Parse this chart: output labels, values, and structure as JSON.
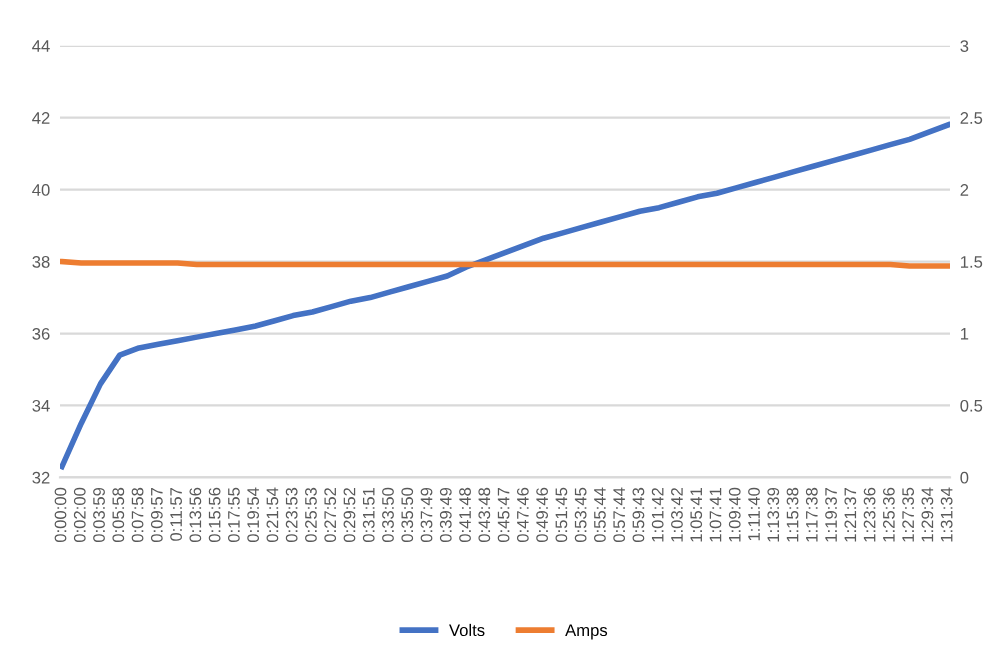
{
  "chart_data": {
    "type": "line",
    "categories": [
      "0:00:00",
      "0:02:00",
      "0:03:59",
      "0:05:58",
      "0:07:58",
      "0:09:57",
      "0:11:57",
      "0:13:56",
      "0:15:56",
      "0:17:55",
      "0:19:54",
      "0:21:54",
      "0:23:53",
      "0:25:53",
      "0:27:52",
      "0:29:52",
      "0:31:51",
      "0:33:50",
      "0:35:50",
      "0:37:49",
      "0:39:49",
      "0:41:48",
      "0:43:48",
      "0:45:47",
      "0:47:46",
      "0:49:46",
      "0:51:45",
      "0:53:45",
      "0:55:44",
      "0:57:44",
      "0:59:43",
      "1:01:42",
      "1:03:42",
      "1:05:41",
      "1:07:41",
      "1:09:40",
      "1:11:40",
      "1:13:39",
      "1:15:38",
      "1:17:38",
      "1:19:37",
      "1:21:37",
      "1:23:36",
      "1:25:36",
      "1:27:35",
      "1:29:34",
      "1:31:34"
    ],
    "series": [
      {
        "name": "Volts",
        "color": "#4472c4",
        "values": [
          32.3,
          33.5,
          34.6,
          35.4,
          35.6,
          35.7,
          35.8,
          35.9,
          36.0,
          36.1,
          36.2,
          36.35,
          36.5,
          36.6,
          36.75,
          36.9,
          37.0,
          37.15,
          37.3,
          37.45,
          37.6,
          37.85,
          38.05,
          38.25,
          38.45,
          38.65,
          38.8,
          38.95,
          39.1,
          39.25,
          39.4,
          39.5,
          39.65,
          39.8,
          39.9,
          40.05,
          40.2,
          40.35,
          40.5,
          40.65,
          40.8,
          40.95,
          41.1,
          41.25,
          41.4,
          41.6,
          41.8
        ]
      },
      {
        "name": "Amps",
        "color": "#ed7d31",
        "axis": "y2",
        "values": [
          1.5,
          1.49,
          1.49,
          1.49,
          1.49,
          1.49,
          1.49,
          1.48,
          1.48,
          1.48,
          1.48,
          1.48,
          1.48,
          1.48,
          1.48,
          1.48,
          1.48,
          1.48,
          1.48,
          1.48,
          1.48,
          1.48,
          1.48,
          1.48,
          1.48,
          1.48,
          1.48,
          1.48,
          1.48,
          1.48,
          1.48,
          1.48,
          1.48,
          1.48,
          1.48,
          1.48,
          1.48,
          1.48,
          1.48,
          1.48,
          1.48,
          1.48,
          1.48,
          1.48,
          1.47,
          1.47,
          1.47
        ]
      }
    ],
    "ylim": [
      32,
      44
    ],
    "yticks": [
      32,
      34,
      36,
      38,
      40,
      42,
      44
    ],
    "y2lim": [
      0,
      3
    ],
    "y2ticks": [
      0,
      0.5,
      1,
      1.5,
      2,
      2.5,
      3
    ],
    "grid": "y",
    "legend": "bottom",
    "marker": "none",
    "line_style": "solid"
  }
}
